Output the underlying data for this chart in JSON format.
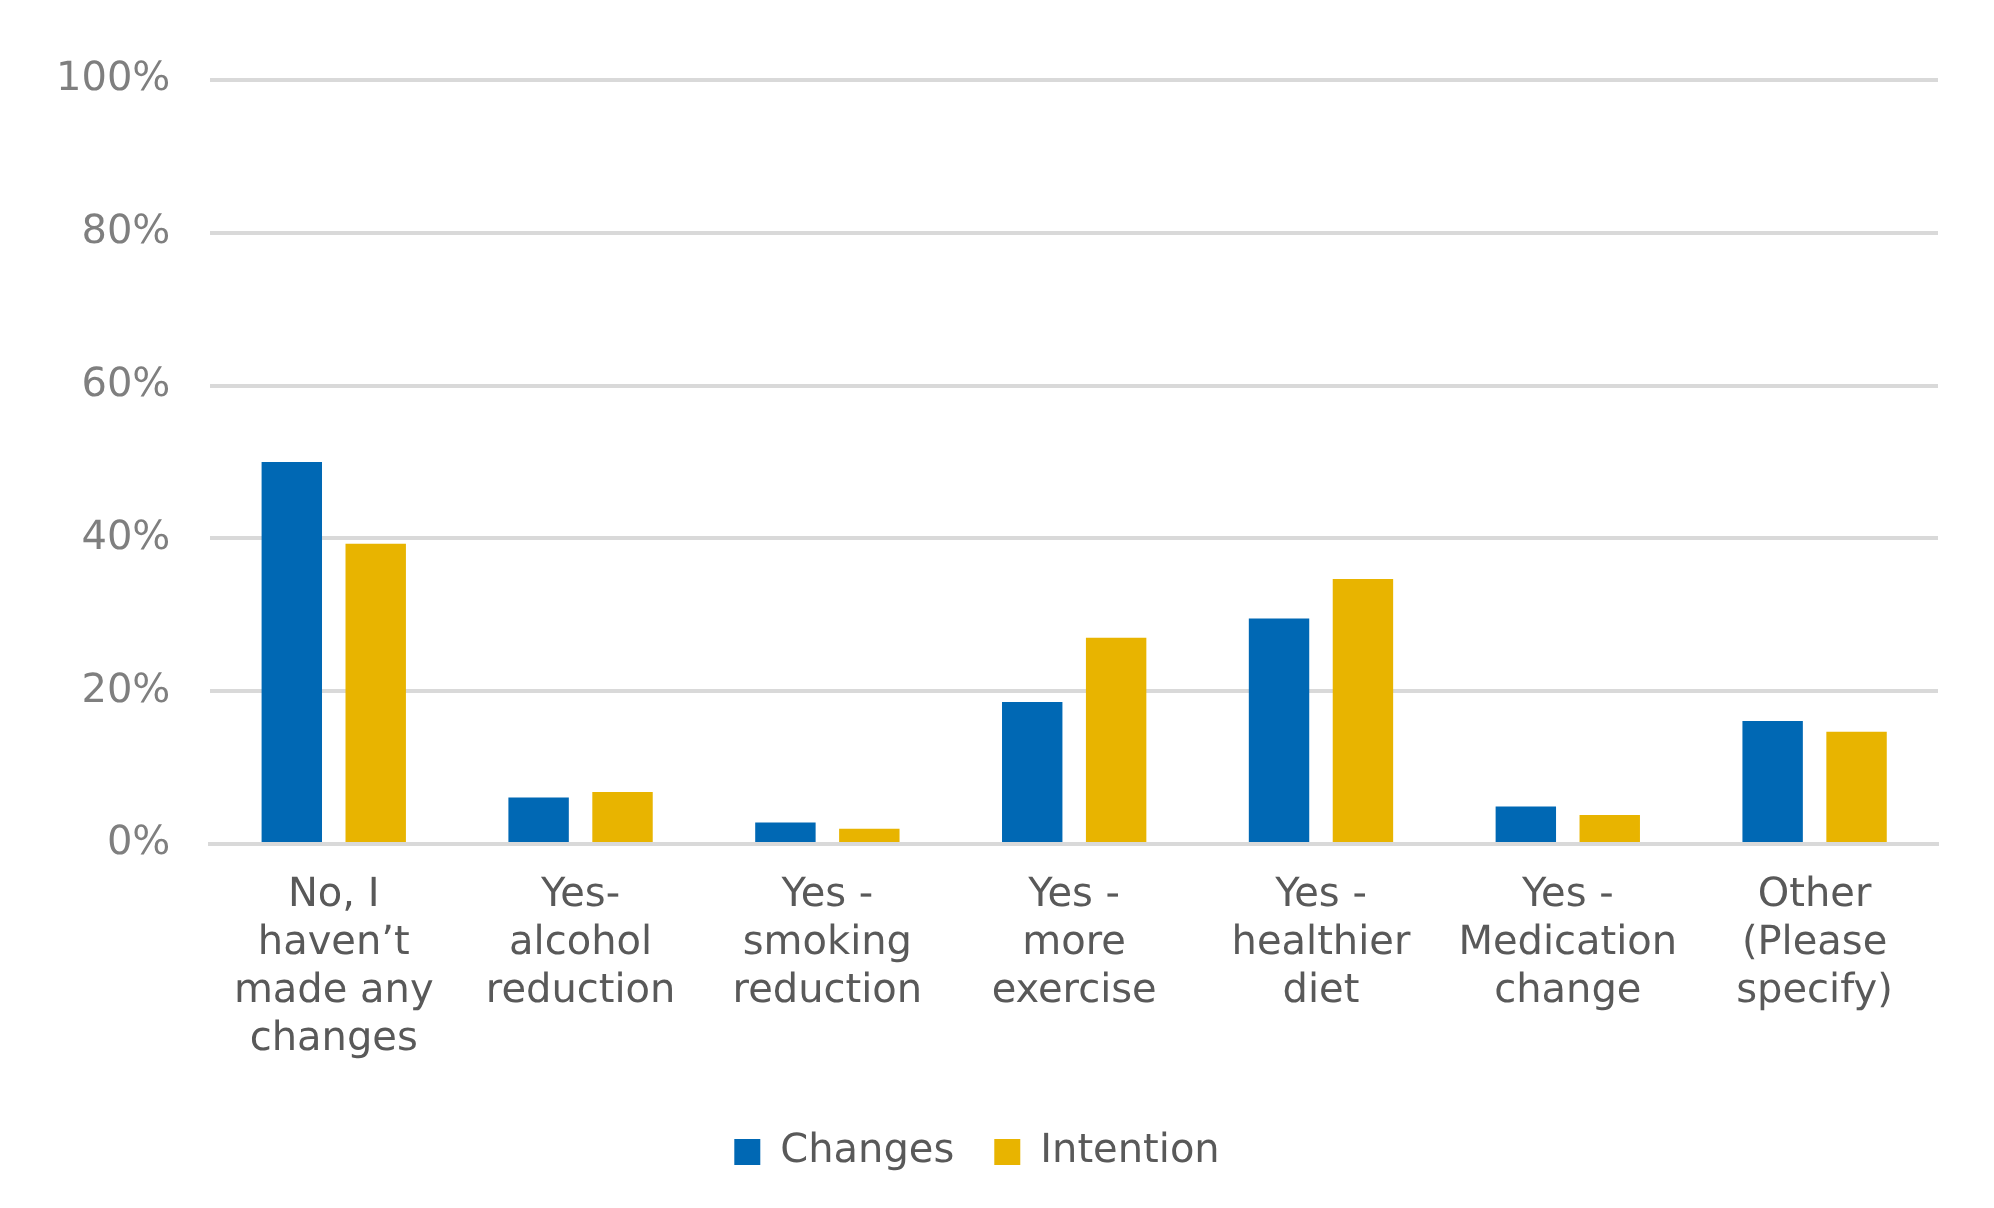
{
  "chart_data": {
    "type": "bar",
    "categories": [
      "No, I haven’t made any changes",
      "Yes- alcohol reduction",
      "Yes - smoking reduction",
      "Yes - more exercise",
      "Yes - healthier diet",
      "Yes - Medication change",
      "Other (Please specify)"
    ],
    "series": [
      {
        "name": "Changes",
        "color": "#0068b4",
        "values": [
          50.0,
          6.1,
          2.8,
          18.6,
          29.5,
          4.9,
          16.1
        ]
      },
      {
        "name": "Intention",
        "color": "#e8b400",
        "values": [
          39.3,
          6.8,
          2.0,
          27.0,
          34.7,
          3.8,
          14.7
        ]
      }
    ],
    "ylim": [
      0,
      100
    ],
    "yticks": [
      {
        "value": 0,
        "label": "0%"
      },
      {
        "value": 20,
        "label": "20%"
      },
      {
        "value": 40,
        "label": "40%"
      },
      {
        "value": 60,
        "label": "60%"
      },
      {
        "value": 80,
        "label": "80%"
      },
      {
        "value": 100,
        "label": "100%"
      }
    ],
    "grid": "y",
    "legend": "bottom"
  }
}
